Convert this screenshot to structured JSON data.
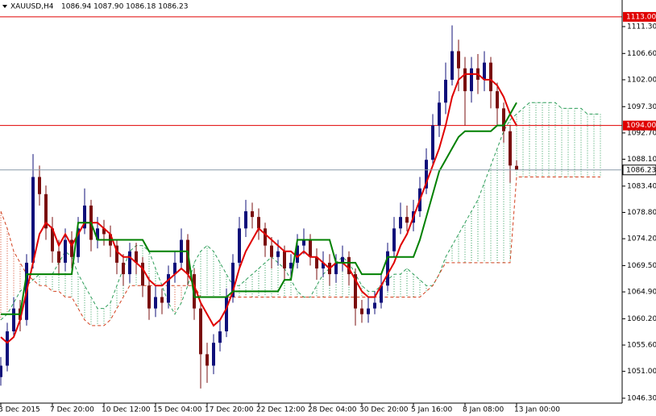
{
  "chart_data": {
    "type": "candlestick",
    "title": "XAUUSD,H4",
    "header_quote": "1086.94 1087.90 1086.18 1086.23",
    "categories": [
      "3 Dec 2015",
      null,
      null,
      null,
      null,
      null,
      null,
      null,
      "7 Dec 20:00",
      null,
      null,
      null,
      null,
      null,
      null,
      null,
      "10 Dec 12:00",
      null,
      null,
      null,
      null,
      null,
      null,
      null,
      "15 Dec 04:00",
      null,
      null,
      null,
      null,
      null,
      null,
      null,
      "17 Dec 20:00",
      null,
      null,
      null,
      null,
      null,
      null,
      null,
      "22 Dec 12:00",
      null,
      null,
      null,
      null,
      null,
      null,
      null,
      "28 Dec 04:00",
      null,
      null,
      null,
      null,
      null,
      null,
      null,
      "30 Dec 20:00",
      null,
      null,
      null,
      null,
      null,
      null,
      null,
      "5 Jan 16:00",
      null,
      null,
      null,
      null,
      null,
      null,
      null,
      "8 Jan 08:00",
      null,
      null,
      null,
      null,
      null,
      null,
      null,
      "13 Jan 00:00",
      null,
      null,
      null,
      null,
      null,
      null,
      null,
      null,
      null,
      null,
      null,
      null,
      null
    ],
    "open": [
      1050,
      1052,
      1058,
      1062,
      1060,
      1070,
      1085,
      1082,
      1076,
      1072,
      1070,
      1074,
      1071,
      1076,
      1080,
      1074,
      1076,
      1075,
      1073,
      1070,
      1068,
      1072,
      1070,
      1066,
      1062,
      1064,
      1063,
      1068,
      1070,
      1074,
      1068,
      1062,
      1054,
      1052,
      1056,
      1058,
      1064,
      1070,
      1076,
      1079,
      1078,
      1076,
      1073,
      1071,
      1072,
      1069,
      1070,
      1073,
      1074,
      1071,
      1069,
      1070,
      1068,
      1070,
      1071,
      1068,
      1062,
      1061,
      1062,
      1063,
      1066,
      1072,
      1076,
      1078,
      1077,
      1079,
      1083,
      1088,
      1094,
      1098,
      1102,
      1107,
      1104,
      1100,
      1104,
      1102,
      1105,
      1100,
      1097,
      1093,
      1086.94,
      null,
      null,
      null,
      null,
      null,
      null,
      null,
      null,
      null,
      null,
      null,
      null,
      null
    ],
    "high": [
      1053.5,
      1059.5,
      1064,
      1063.5,
      1071.5,
      1089,
      1087,
      1083.5,
      1078,
      1074,
      1076,
      1075.5,
      1078,
      1083,
      1081,
      1078,
      1077.5,
      1076.5,
      1074,
      1071.5,
      1073.5,
      1073.5,
      1071,
      1067.5,
      1066,
      1065.5,
      1069.5,
      1072,
      1076,
      1075,
      1069,
      1063,
      1056,
      1057.5,
      1060,
      1065.5,
      1071.5,
      1078,
      1081,
      1080.5,
      1079.5,
      1077,
      1074.5,
      1074,
      1073,
      1071.5,
      1075,
      1076,
      1075,
      1072.5,
      1072,
      1071.5,
      1071.5,
      1073,
      1072,
      1069,
      1063.5,
      1064,
      1065,
      1068,
      1073.5,
      1078,
      1080.5,
      1080,
      1081,
      1085,
      1090,
      1096,
      1100,
      1105,
      1111.5,
      1109,
      1106,
      1106,
      1106.5,
      1107,
      1106,
      1101.5,
      1098,
      1094,
      1087.9,
      null,
      null,
      null,
      null,
      null,
      null,
      null,
      null,
      null,
      null,
      null,
      null,
      null
    ],
    "low": [
      1048.5,
      1051,
      1057,
      1058,
      1059,
      1069,
      1080,
      1074,
      1070,
      1068,
      1068.5,
      1069,
      1070,
      1075,
      1072,
      1072.5,
      1073,
      1071,
      1068,
      1066,
      1066.5,
      1068,
      1064,
      1060,
      1060.5,
      1061,
      1062,
      1066.5,
      1069,
      1066,
      1060,
      1048,
      1049,
      1050.5,
      1054.5,
      1057,
      1063,
      1069,
      1074.5,
      1076,
      1074,
      1071,
      1069,
      1069.5,
      1067,
      1067.5,
      1069,
      1071.5,
      1069.5,
      1067,
      1067.5,
      1066,
      1066.5,
      1068.5,
      1066,
      1059,
      1059.5,
      1059.5,
      1061,
      1062,
      1065,
      1071,
      1075,
      1075.5,
      1075.5,
      1078,
      1082,
      1087,
      1092,
      1096,
      1101,
      1100,
      1094,
      1098,
      1099.5,
      1100,
      1097,
      1094,
      1091,
      1084,
      1086.18,
      null,
      null,
      null,
      null,
      null,
      null,
      null,
      null,
      null,
      null,
      null,
      null,
      null
    ],
    "close": [
      1052,
      1058,
      1062,
      1060,
      1070,
      1085,
      1082,
      1076,
      1072,
      1070,
      1074,
      1071,
      1076,
      1080,
      1074,
      1076,
      1075,
      1073,
      1070,
      1068,
      1072,
      1070,
      1066,
      1062,
      1064,
      1063,
      1068,
      1070,
      1074,
      1068,
      1062,
      1054,
      1052,
      1056,
      1058,
      1064,
      1070,
      1076,
      1079,
      1078,
      1076,
      1073,
      1071,
      1072,
      1069,
      1070,
      1073,
      1074,
      1071,
      1069,
      1070,
      1068,
      1070,
      1071,
      1068,
      1062,
      1061,
      1062,
      1063,
      1066,
      1072,
      1076,
      1078,
      1077,
      1079,
      1083,
      1088,
      1094,
      1098,
      1102,
      1107,
      1104,
      1100,
      1104,
      1102,
      1105,
      1100,
      1097,
      1093,
      1087,
      1086.23,
      null,
      null,
      null,
      null,
      null,
      null,
      null,
      null,
      null,
      null,
      null,
      null,
      null
    ],
    "bull_color": "#10107a",
    "bear_color": "#7a0f0f",
    "lines": [
      {
        "color": "#e00000",
        "values": [
          1057,
          1056,
          1057,
          1060,
          1065,
          1070,
          1075,
          1077,
          1076,
          1073,
          1075,
          1073,
          1075,
          1077,
          1077,
          1077,
          1076,
          1075,
          1072,
          1071,
          1071,
          1070,
          1069,
          1067,
          1066,
          1066,
          1067,
          1068,
          1069,
          1068,
          1066,
          1063,
          1061,
          1059,
          1060,
          1062,
          1065,
          1069,
          1072,
          1074,
          1076,
          1075,
          1074,
          1073,
          1072,
          1072,
          1071,
          1072,
          1071,
          1071,
          1070,
          1069,
          1070,
          1070,
          1069,
          1067,
          1065,
          1064,
          1064,
          1066,
          1068,
          1070,
          1073,
          1075,
          1078,
          1081,
          1084,
          1087,
          1090,
          1094,
          1099,
          1102,
          1103,
          1103,
          1103,
          1102,
          1102,
          1101,
          1099,
          1096,
          1094,
          null,
          null,
          null,
          null,
          null,
          null,
          null,
          null,
          null,
          null,
          null,
          null,
          null
        ]
      },
      {
        "color": "#008000",
        "values": [
          1061,
          1061,
          1061,
          1061,
          1068,
          1068,
          1068,
          1068,
          1068,
          1068,
          1068,
          1068,
          1077,
          1077,
          1077,
          1074,
          1074,
          1074,
          1074,
          1074,
          1074,
          1074,
          1074,
          1072,
          1072,
          1072,
          1072,
          1072,
          1072,
          1072,
          1064,
          1064,
          1064,
          1064,
          1064,
          1064,
          1065,
          1065,
          1065,
          1065,
          1065,
          1065,
          1065,
          1065,
          1067,
          1067,
          1074,
          1074,
          1074,
          1074,
          1074,
          1074,
          1070,
          1070,
          1070,
          1070,
          1068,
          1068,
          1068,
          1068,
          1071,
          1071,
          1071,
          1071,
          1071,
          1074,
          1078,
          1082,
          1086,
          1088,
          1090,
          1092,
          1093,
          1093,
          1093,
          1093,
          1093,
          1094,
          1094,
          1096,
          1098,
          null,
          null,
          null,
          null,
          null,
          null,
          null,
          null,
          null,
          null,
          null,
          null,
          null
        ]
      }
    ],
    "cloud": {
      "up_color": "#2e9e5a",
      "down_color": "#d2401e",
      "span_a": [
        1060,
        1061,
        1063,
        1065,
        1066,
        1067,
        1068,
        1068,
        1068,
        1070,
        1072,
        1071,
        1068,
        1066,
        1064,
        1062,
        1062,
        1063,
        1066,
        1069,
        1072,
        1073,
        1073,
        1072,
        1069,
        1066,
        1063,
        1061,
        1063,
        1066,
        1070,
        1072,
        1073,
        1072,
        1070,
        1068,
        1066,
        1066,
        1067,
        1068,
        1069,
        1070,
        1071,
        1070,
        1069,
        1067,
        1065,
        1064,
        1064,
        1066,
        1068,
        1069,
        1070,
        1071,
        1070,
        1068,
        1066,
        1065,
        1065,
        1066,
        1067,
        1068,
        1068,
        1069,
        1068,
        1067,
        1066,
        1066,
        1068,
        1071,
        1073,
        1075,
        1077,
        1079,
        1081,
        1084,
        1087,
        1090,
        1093,
        1095,
        1096,
        1097,
        1098,
        1098,
        1098,
        1098,
        1098,
        1097,
        1097,
        1097,
        1097,
        1096,
        1096,
        1096
      ],
      "span_b": [
        1079,
        1076,
        1072,
        1070,
        1068,
        1067,
        1066,
        1066,
        1065,
        1065,
        1064,
        1064,
        1062,
        1060,
        1059,
        1059,
        1059,
        1060,
        1062,
        1064,
        1066,
        1066,
        1066,
        1066,
        1066,
        1066,
        1066,
        1066,
        1066,
        1066,
        1066,
        1064,
        1064,
        1064,
        1064,
        1064,
        1064,
        1064,
        1064,
        1064,
        1064,
        1064,
        1064,
        1064,
        1064,
        1064,
        1064,
        1064,
        1064,
        1064,
        1064,
        1064,
        1064,
        1064,
        1064,
        1064,
        1064,
        1064,
        1064,
        1064,
        1064,
        1064,
        1064,
        1064,
        1064,
        1064,
        1065,
        1066,
        1068,
        1070,
        1070,
        1070,
        1070,
        1070,
        1070,
        1070,
        1070,
        1070,
        1070,
        1070,
        1085,
        1085,
        1085,
        1085,
        1085,
        1085,
        1085,
        1085,
        1085,
        1085,
        1085,
        1085,
        1085,
        1085
      ]
    },
    "levels": [
      {
        "value": 1113,
        "label": "1113.00",
        "color": "#e00000"
      },
      {
        "value": 1094,
        "label": "1094.00",
        "color": "#e00000"
      }
    ],
    "current": {
      "value": 1086.23,
      "label": "1086.23",
      "color": "#8a9aa8"
    },
    "ylim": [
      1045.45,
      1115.95
    ],
    "yticks": [
      {
        "value": 1111.3,
        "label": "1111.30"
      },
      {
        "value": 1106.6,
        "label": "1106.60"
      },
      {
        "value": 1102,
        "label": "1102.00"
      },
      {
        "value": 1097.3,
        "label": "1097.30"
      },
      {
        "value": 1092.7,
        "label": "1092.70"
      },
      {
        "value": 1088.1,
        "label": "1088.10"
      },
      {
        "value": 1083.4,
        "label": "1083.40"
      },
      {
        "value": 1078.8,
        "label": "1078.80"
      },
      {
        "value": 1074.2,
        "label": "1074.20"
      },
      {
        "value": 1069.5,
        "label": "1069.50"
      },
      {
        "value": 1064.9,
        "label": "1064.90"
      },
      {
        "value": 1060.2,
        "label": "1060.20"
      },
      {
        "value": 1055.6,
        "label": "1055.60"
      },
      {
        "value": 1051,
        "label": "1051.00"
      },
      {
        "value": 1046.3,
        "label": "1046.30"
      }
    ]
  }
}
